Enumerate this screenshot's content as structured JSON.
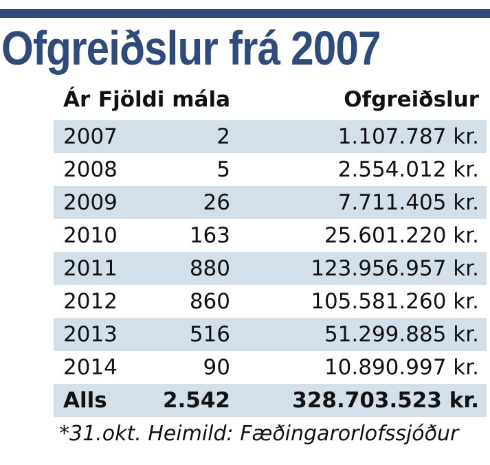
{
  "header": {
    "title": "Ofgreiðslur frá 2007"
  },
  "table": {
    "columns": [
      "Ár",
      "Fjöldi mála",
      "Ofgreiðslur"
    ],
    "rows": [
      [
        "2007",
        "2",
        "1.107.787 kr."
      ],
      [
        "2008",
        "5",
        "2.554.012 kr."
      ],
      [
        "2009",
        "26",
        "7.711.405 kr."
      ],
      [
        "2010",
        "163",
        "25.601.220 kr."
      ],
      [
        "2011",
        "880",
        "123.956.957 kr."
      ],
      [
        "2012",
        "860",
        "105.581.260 kr."
      ],
      [
        "2013",
        "516",
        "51.299.885 kr."
      ],
      [
        "2014",
        "90",
        "10.890.997 kr."
      ]
    ],
    "total": [
      "Alls",
      "2.542",
      "328.703.523 kr."
    ]
  },
  "footnote": "*31.okt. Heimild: Fæðingarorlofssjóður"
}
